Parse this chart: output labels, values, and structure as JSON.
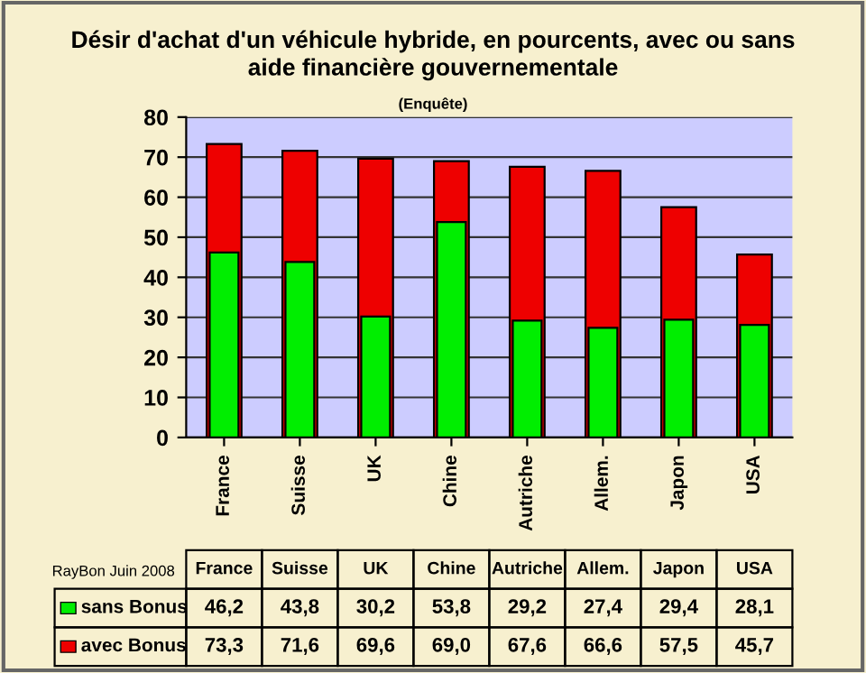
{
  "chart_data": {
    "type": "bar",
    "title": "Désir d'achat d'un véhicule hybride, en pourcents, avec ou sans\naide financière gouvernementale",
    "subtitle": "(Enquête)",
    "categories": [
      "France",
      "Suisse",
      "UK",
      "Chine",
      "Autriche",
      "Allem.",
      "Japon",
      "USA"
    ],
    "series": [
      {
        "name": "sans Bonus",
        "color": "#00ee00",
        "values": [
          46.2,
          43.8,
          30.2,
          53.8,
          29.2,
          27.4,
          29.4,
          28.1
        ],
        "value_labels": [
          "46,2",
          "43,8",
          "30,2",
          "53,8",
          "29,2",
          "27,4",
          "29,4",
          "28,1"
        ]
      },
      {
        "name": "avec Bonus",
        "color": "#ee0000",
        "values": [
          73.3,
          71.6,
          69.6,
          69.0,
          67.6,
          66.6,
          57.5,
          45.7
        ],
        "value_labels": [
          "73,3",
          "71,6",
          "69,6",
          "69,0",
          "67,6",
          "66,6",
          "57,5",
          "45,7"
        ]
      }
    ],
    "ylim": [
      0,
      80
    ],
    "yticks": [
      0,
      10,
      20,
      30,
      40,
      50,
      60,
      70,
      80
    ],
    "grid": "y",
    "legend": "bottom",
    "annotations": [
      "RayBon Juin 2008"
    ]
  }
}
